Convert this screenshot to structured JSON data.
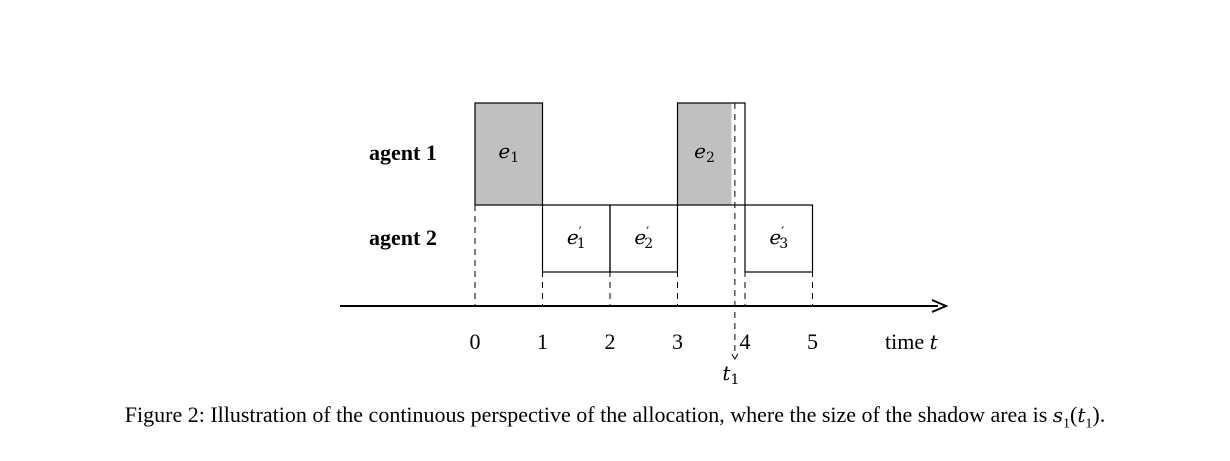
{
  "diagram": {
    "rows": [
      {
        "label": "agent 1"
      },
      {
        "label": "agent 2"
      }
    ],
    "axis_ticks": [
      "0",
      "1",
      "2",
      "3",
      "4",
      "5"
    ],
    "axis_label": {
      "text": "time ",
      "var": "t"
    },
    "marker": {
      "var": "t",
      "sub": "1",
      "at": 3.85
    },
    "agent1_blocks": [
      {
        "start": 0,
        "end": 1,
        "name": "e",
        "sub": "1",
        "prime": false,
        "shaded": true
      },
      {
        "start": 3,
        "end": 4,
        "name": "e",
        "sub": "2",
        "prime": false,
        "shaded": true,
        "shade_to": 3.8
      }
    ],
    "agent2_blocks": [
      {
        "start": 1,
        "end": 2,
        "name": "e",
        "sub": "1",
        "prime": true,
        "shaded": false
      },
      {
        "start": 2,
        "end": 3,
        "name": "e",
        "sub": "2",
        "prime": true,
        "shaded": false
      },
      {
        "start": 4,
        "end": 5,
        "name": "e",
        "sub": "3",
        "prime": true,
        "shaded": false
      }
    ],
    "colors": {
      "shade": "#c0c0c0",
      "line": "#000000"
    }
  },
  "caption": {
    "prefix": "Figure 2: Illustration of the continuous perspective of the allocation, where the size of the shadow area is ",
    "func": "s",
    "func_sub": "1",
    "arg": "t",
    "arg_sub": "1",
    "suffix": ")."
  }
}
